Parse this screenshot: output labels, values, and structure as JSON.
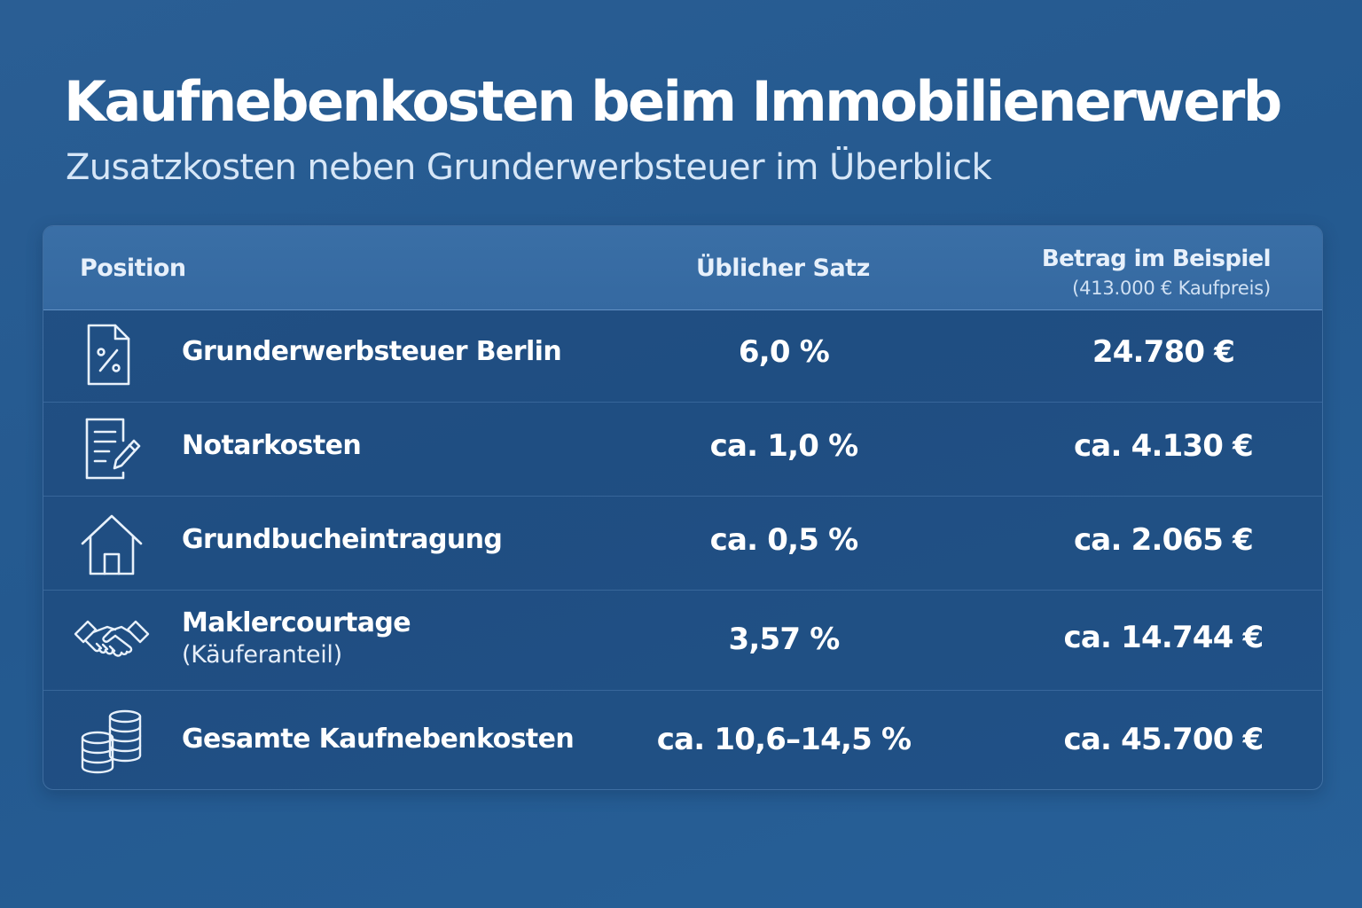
{
  "header": {
    "title": "Kaufnebenkosten beim Immobilienerwerb",
    "subtitle": "Zusatzkosten neben Grunderwerbsteuer im Überblick"
  },
  "table": {
    "columns": {
      "position": "Position",
      "rate": "Üblicher Satz",
      "amount": "Betrag im Beispiel",
      "amount_note": "(413.000 € Kaufpreis)"
    },
    "rows": [
      {
        "icon": "percent-document-icon",
        "label": "Grunderwerbsteuer Berlin",
        "sublabel": "",
        "rate": "6,0 %",
        "amount": "24.780 €"
      },
      {
        "icon": "document-pen-icon",
        "label": "Notarkosten",
        "sublabel": "",
        "rate": "ca. 1,0 %",
        "amount": "ca. 4.130 €"
      },
      {
        "icon": "house-icon",
        "label": "Grundbucheintragung",
        "sublabel": "",
        "rate": "ca. 0,5 %",
        "amount": "ca. 2.065 €"
      },
      {
        "icon": "handshake-icon",
        "label": "Maklercourtage",
        "sublabel": "(Käuferanteil)",
        "rate": "3,57 %",
        "amount": "ca. 14.744 €"
      },
      {
        "icon": "coin-stack-icon",
        "label": "Gesamte Kaufnebenkosten",
        "sublabel": "",
        "rate": "ca. 10,6–14,5 %",
        "amount": "ca. 45.700 €"
      }
    ]
  },
  "colors": {
    "background": "#24598f",
    "header_row": "#3a6fa6",
    "text": "#ffffff",
    "subtitle_text": "#d6e6f7"
  }
}
